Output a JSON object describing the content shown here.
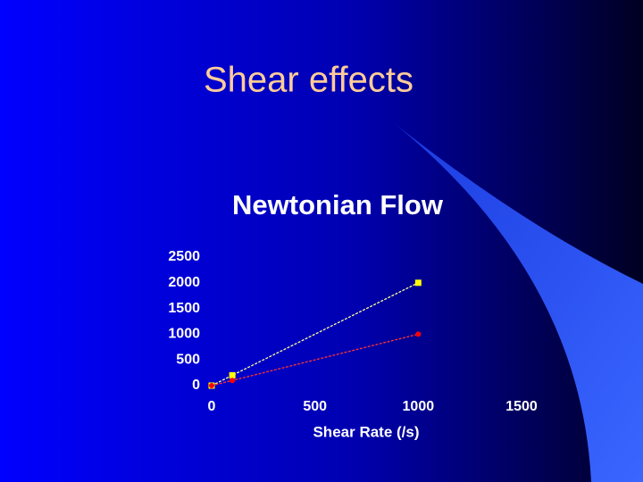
{
  "slide_title": "Shear effects",
  "chart_data": {
    "type": "line",
    "title": "Newtonian Flow",
    "x_label": "Shear Rate (/s)",
    "x": [
      0,
      100,
      1000
    ],
    "series": [
      {
        "color": "#ffff00",
        "line_color": "#ffff99",
        "marker": "square",
        "values": [
          0,
          200,
          2000
        ]
      },
      {
        "color": "#ff0000",
        "line_color": "#ff3333",
        "marker": "circle",
        "values": [
          0,
          100,
          1000
        ]
      }
    ],
    "xlim": [
      0,
      1500
    ],
    "xticks": [
      0,
      500,
      1000,
      1500
    ],
    "ylim": [
      0,
      2500
    ],
    "yticks": [
      0,
      500,
      1000,
      1500,
      2000,
      2500
    ]
  }
}
